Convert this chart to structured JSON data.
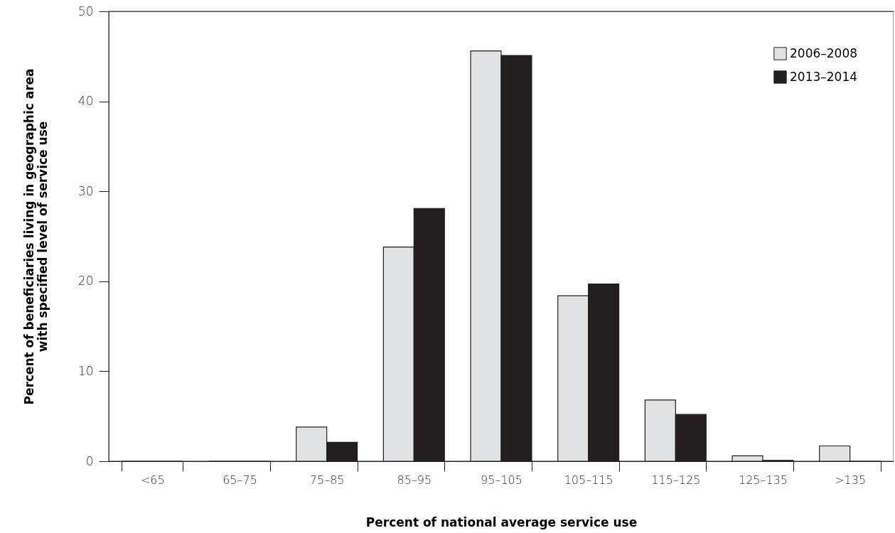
{
  "chart_data": {
    "type": "bar",
    "xlabel": "Percent of national average service use",
    "ylabel": "Percent of beneficiaries living in geographic area\nwith specified level of service use",
    "categories": [
      "<65",
      "65–75",
      "75–85",
      "85–95",
      "95–105",
      "105–115",
      "115–125",
      "125–135",
      ">135"
    ],
    "series": [
      {
        "name": "2006–2008",
        "color": "#e1e2e4",
        "values": [
          0,
          0,
          3.8,
          23.8,
          45.6,
          18.4,
          6.8,
          0.6,
          1.7
        ]
      },
      {
        "name": "2013–2014",
        "color": "#231f20",
        "values": [
          0,
          0,
          2.1,
          28.1,
          45.1,
          19.7,
          5.2,
          0.1,
          0
        ]
      }
    ],
    "ylim": [
      0,
      50
    ],
    "yticks": [
      0,
      10,
      20,
      30,
      40,
      50
    ],
    "grid": false,
    "legend": "top right"
  }
}
